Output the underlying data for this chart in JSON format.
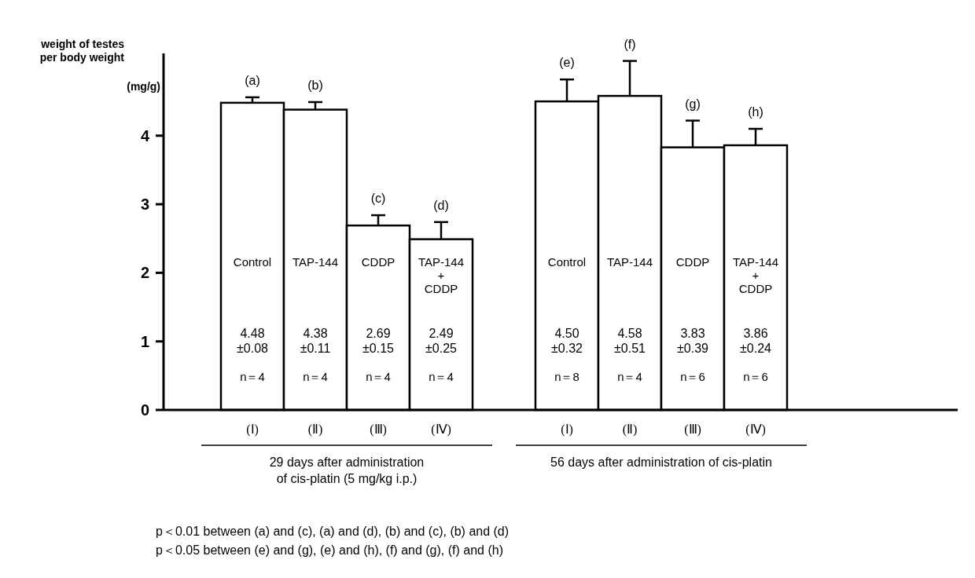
{
  "chart_data": {
    "type": "bar",
    "ylabel": "weight of testes\nper body weight\n(mg/g)",
    "categories": [
      "(Ⅰ)",
      "(Ⅱ)",
      "(Ⅲ)",
      "(Ⅳ)",
      null,
      "(Ⅰ)",
      "(Ⅱ)",
      "(Ⅲ)",
      "(Ⅳ)"
    ],
    "series": [
      {
        "color": "#ffffff",
        "values": [
          4.48,
          4.38,
          2.69,
          2.49,
          null,
          4.5,
          4.58,
          3.83,
          3.86
        ],
        "errors": [
          0.08,
          0.11,
          0.15,
          0.25,
          null,
          0.32,
          0.51,
          0.39,
          0.24
        ],
        "value_labels": [
          "4.48\n±0.08",
          "4.38\n±0.11",
          "2.69\n±0.15",
          "2.49\n±0.25",
          null,
          "4.50\n±0.32",
          "4.58\n±0.51",
          "3.83\n±0.39",
          "3.86\n±0.24"
        ]
      }
    ],
    "ylim": [
      0,
      5.2
    ],
    "yticks": [
      0,
      1,
      2,
      3,
      4
    ],
    "grid": false,
    "annotations": [
      "(a)",
      "(b)",
      "(c)",
      "(d)",
      "(e)",
      "(f)",
      "(g)",
      "(h)",
      "Control",
      "TAP-144",
      "CDDP",
      "TAP-144\n+\nCDDP",
      "Control",
      "TAP-144",
      "CDDP",
      "TAP-144\n+\nCDDP",
      "n＝4",
      "n＝4",
      "n＝4",
      "n＝4",
      "n＝8",
      "n＝4",
      "n＝6",
      "n＝6",
      "29 days after administration\nof cis-platin (5 mg/kg i.p.)",
      "56 days after administration of cis-platin",
      "p＜0.01 between (a) and (c), (a) and (d), (b) and (c), (b) and (d)",
      "p＜0.05 between (e) and (g), (e) and (h), (f) and (g), (f) and (h)"
    ]
  }
}
